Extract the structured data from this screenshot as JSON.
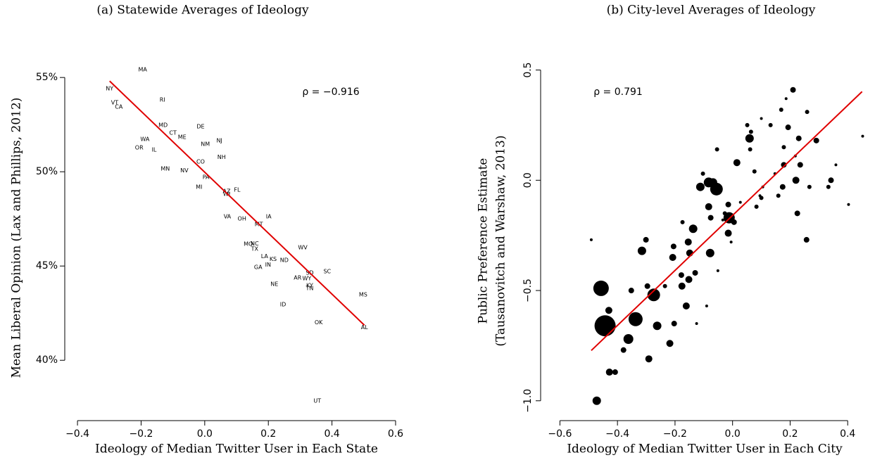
{
  "chart_data": [
    {
      "type": "text_scatter",
      "title": "(a) Statewide Averages of Ideology",
      "x_label": "Ideology of Median Twitter User in Each State",
      "y_label": [
        "Mean Liberal Opinion (Lax and Phillips, 2012)"
      ],
      "annotation": "ρ = −0.916",
      "color": "#000000",
      "labels": [
        "MA",
        "NY",
        "VT",
        "CA",
        "RI",
        "MD",
        "CT",
        "ME",
        "DE",
        "NJ",
        "NM",
        "NH",
        "WA",
        "OR",
        "IL",
        "CO",
        "MN",
        "NV",
        "PA",
        "MI",
        "AZ",
        "WI",
        "FL",
        "VA",
        "OH",
        "MT",
        "IA",
        "MO",
        "NC",
        "TX",
        "LA",
        "KS",
        "ND",
        "WV",
        "IN",
        "GA",
        "SD",
        "SC",
        "AR",
        "WY",
        "KY",
        "TN",
        "NE",
        "MS",
        "ID",
        "AL",
        "OK",
        "UT"
      ],
      "x": [
        -0.195,
        -0.299,
        -0.283,
        -0.27,
        -0.133,
        -0.131,
        -0.1,
        -0.071,
        -0.013,
        0.046,
        0.002,
        0.053,
        -0.188,
        -0.206,
        -0.159,
        -0.013,
        -0.124,
        -0.064,
        0.004,
        -0.018,
        0.069,
        0.069,
        0.102,
        0.071,
        0.117,
        0.17,
        0.201,
        0.137,
        0.157,
        0.157,
        0.188,
        0.215,
        0.25,
        0.308,
        0.199,
        0.168,
        0.33,
        0.385,
        0.292,
        0.321,
        0.33,
        0.33,
        0.219,
        0.498,
        0.246,
        0.502,
        0.358,
        0.354
      ],
      "values": [
        55.41,
        54.4,
        53.66,
        53.43,
        53.81,
        52.46,
        52.05,
        51.83,
        52.39,
        51.64,
        51.46,
        50.78,
        51.72,
        51.27,
        51.16,
        50.52,
        50.15,
        50.07,
        49.7,
        49.18,
        48.96,
        48.81,
        49.03,
        47.61,
        47.5,
        47.2,
        47.61,
        46.16,
        46.19,
        45.9,
        45.52,
        45.37,
        45.3,
        45.97,
        45.07,
        44.93,
        44.63,
        44.7,
        44.37,
        44.33,
        43.96,
        43.81,
        44.03,
        43.47,
        42.95,
        41.75,
        42.01,
        37.84
      ],
      "fit_line": {
        "x": [
          -0.299,
          0.502
        ],
        "y": [
          54.81,
          41.86
        ],
        "color": "#e00000"
      },
      "xlim": [
        -0.44,
        0.62
      ],
      "ylim": [
        36.8,
        56.2
      ],
      "xticks": [
        {
          "value": -0.4,
          "label": "−0.4"
        },
        {
          "value": -0.2,
          "label": "−0.2"
        },
        {
          "value": 0,
          "label": "0.0"
        },
        0.2,
        0.4,
        0.6
      ],
      "yticks": [
        {
          "value": 40,
          "label": "40%"
        },
        {
          "value": 45,
          "label": "45%"
        },
        {
          "value": 50,
          "label": "50%"
        },
        {
          "value": 55,
          "label": "55%"
        }
      ],
      "ytick_rotated": false
    },
    {
      "type": "bubble",
      "title": "(b) City-level Averages of Ideology",
      "x_label": "Ideology of Median Twitter User in Each City",
      "y_label": [
        "Public Preference Estimate",
        "(Tausanovitch and Warshaw, 2013)"
      ],
      "annotation": "ρ = 0.791",
      "color": "#000000",
      "x": [
        -0.472,
        -0.491,
        -0.457,
        -0.443,
        -0.43,
        -0.428,
        -0.408,
        -0.379,
        -0.362,
        -0.352,
        -0.337,
        -0.315,
        -0.301,
        -0.296,
        -0.291,
        -0.274,
        -0.262,
        -0.235,
        -0.218,
        -0.208,
        -0.205,
        -0.203,
        -0.178,
        -0.176,
        -0.174,
        -0.161,
        -0.154,
        -0.152,
        -0.137,
        -0.149,
        -0.13,
        -0.125,
        -0.112,
        -0.103,
        -0.083,
        -0.068,
        -0.076,
        -0.083,
        -0.078,
        -0.056,
        -0.054,
        -0.09,
        -0.051,
        -0.034,
        -0.027,
        -0.015,
        -0.012,
        -0.015,
        0.005,
        -0.005,
        0.015,
        0.027,
        0.051,
        0.061,
        0.059,
        0.064,
        0.076,
        0.083,
        0.095,
        0.1,
        0.105,
        0.1,
        0.132,
        0.147,
        0.159,
        0.169,
        0.178,
        0.178,
        0.174,
        0.218,
        0.225,
        0.23,
        0.257,
        0.267,
        0.259,
        0.291,
        0.333,
        0.342,
        0.359,
        0.403,
        0.452,
        0.21,
        0.186,
        0.193,
        0.235,
        0.22
      ],
      "values": [
        -1.0,
        -0.27,
        -0.49,
        -0.66,
        -0.59,
        -0.87,
        -0.87,
        -0.77,
        -0.72,
        -0.5,
        -0.63,
        -0.32,
        -0.27,
        -0.48,
        -0.81,
        -0.52,
        -0.66,
        -0.48,
        -0.74,
        -0.35,
        -0.3,
        -0.65,
        -0.43,
        -0.48,
        -0.19,
        -0.57,
        -0.28,
        -0.45,
        -0.22,
        -0.33,
        -0.42,
        -0.65,
        -0.03,
        0.03,
        -0.01,
        -0.01,
        -0.17,
        -0.12,
        -0.33,
        -0.04,
        0.14,
        -0.57,
        -0.41,
        -0.18,
        -0.15,
        -0.24,
        -0.17,
        -0.11,
        -0.19,
        -0.28,
        0.08,
        -0.1,
        0.25,
        0.14,
        0.19,
        0.22,
        0.04,
        -0.12,
        -0.07,
        0.28,
        -0.03,
        -0.08,
        0.25,
        0.03,
        -0.07,
        0.32,
        0.15,
        0.07,
        -0.03,
        0.11,
        -0.15,
        0.19,
        -0.27,
        -0.03,
        0.31,
        0.18,
        -0.03,
        0.0,
        0.07,
        -0.11,
        0.2,
        0.41,
        0.37,
        0.24,
        0.07,
        0.0
      ],
      "sizes": [
        6,
        2,
        11,
        15,
        5,
        5,
        4,
        4,
        7,
        4,
        10,
        6,
        4,
        4,
        5,
        9,
        6,
        3,
        5,
        5,
        4,
        4,
        4,
        5,
        3,
        5,
        5,
        5,
        6,
        5,
        4,
        2,
        6,
        3,
        7,
        6,
        4,
        5,
        6,
        9,
        3,
        2,
        2,
        2,
        3,
        5,
        8,
        4,
        4,
        2,
        5,
        2,
        3,
        3,
        6,
        3,
        3,
        3,
        2,
        2,
        2,
        3,
        3,
        2,
        3,
        3,
        3,
        4,
        4,
        2,
        4,
        4,
        4,
        3,
        3,
        4,
        3,
        4,
        2,
        2,
        2,
        4,
        2,
        4,
        4,
        5
      ],
      "fit_line": {
        "x": [
          -0.491,
          0.45
        ],
        "y": [
          -0.772,
          0.402
        ],
        "color": "#e00000"
      },
      "xlim": [
        -0.667,
        0.49
      ],
      "ylim": [
        -1.09,
        0.54
      ],
      "xticks": [
        {
          "value": -0.6,
          "label": "−0.6"
        },
        {
          "value": -0.4,
          "label": "−0.4"
        },
        {
          "value": -0.2,
          "label": "−0.2"
        },
        {
          "value": 0,
          "label": "0.0"
        },
        0.2,
        0.4
      ],
      "yticks": [
        {
          "value": -1.0,
          "label": "−1.0"
        },
        {
          "value": -0.5,
          "label": "−0.5"
        },
        {
          "value": 0,
          "label": "0.0"
        },
        0.5
      ],
      "ytick_rotated": true
    }
  ]
}
